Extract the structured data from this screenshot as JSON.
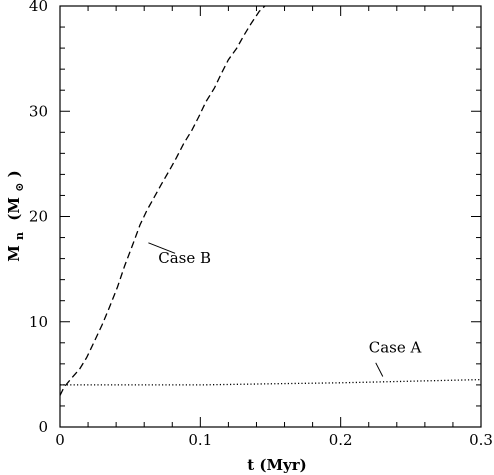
{
  "chart_data": {
    "type": "line",
    "title": "",
    "xlabel": "t (Myr)",
    "ylabel": {
      "main": "M",
      "sub": "n",
      "unit": "(M",
      "unit_sub": "⊙",
      "unit_close": ")"
    },
    "xlim": [
      0,
      0.3
    ],
    "ylim": [
      0,
      40
    ],
    "xticks": [
      0,
      0.1,
      0.2,
      0.3
    ],
    "xtick_labels": [
      "0",
      "0.1",
      "0.2",
      "0.3"
    ],
    "yticks": [
      0,
      10,
      20,
      30,
      40
    ],
    "ytick_labels": [
      "0",
      "10",
      "20",
      "30",
      "40"
    ],
    "grid": false,
    "series": [
      {
        "name": "Case B",
        "style": "dashed",
        "color": "#000000",
        "x": [
          0,
          0.003,
          0.008,
          0.014,
          0.019,
          0.024,
          0.03,
          0.035,
          0.041,
          0.046,
          0.052,
          0.057,
          0.062,
          0.067,
          0.072,
          0.078,
          0.083,
          0.088,
          0.094,
          0.099,
          0.104,
          0.11,
          0.115,
          0.12,
          0.126,
          0.131,
          0.136,
          0.142,
          0.146
        ],
        "y": [
          3.0,
          3.8,
          4.6,
          5.5,
          6.6,
          8.0,
          9.7,
          11.3,
          13.3,
          15.3,
          17.4,
          19.2,
          20.6,
          21.8,
          23.0,
          24.4,
          25.6,
          26.9,
          28.2,
          29.5,
          30.9,
          32.2,
          33.6,
          34.9,
          36.0,
          37.2,
          38.3,
          39.5,
          40.0
        ]
      },
      {
        "name": "Case A",
        "style": "dotted",
        "color": "#000000",
        "x": [
          0,
          0.05,
          0.1,
          0.15,
          0.2,
          0.25,
          0.3
        ],
        "y": [
          4.0,
          4.0,
          4.0,
          4.1,
          4.2,
          4.35,
          4.5
        ]
      }
    ],
    "annotations": [
      {
        "text": "Case B",
        "series": "Case B",
        "text_x": 0.07,
        "text_y": 15.6,
        "pointer_from": [
          0.063,
          17.5
        ],
        "pointer_to": [
          0.082,
          16.5
        ]
      },
      {
        "text": "Case A",
        "series": "Case A",
        "text_x": 0.22,
        "text_y": 7.1,
        "pointer_from": [
          0.225,
          6.1
        ],
        "pointer_to": [
          0.23,
          4.8
        ]
      }
    ]
  }
}
